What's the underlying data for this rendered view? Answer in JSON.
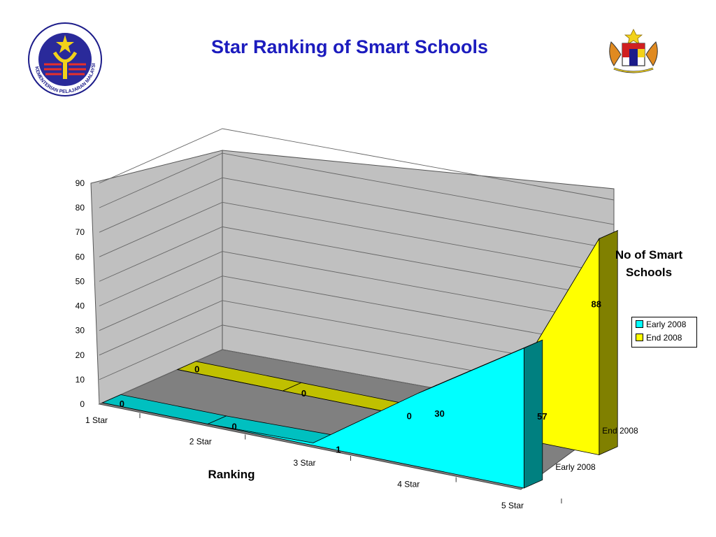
{
  "header": {
    "title": "Star Ranking of Smart Schools",
    "left_logo": {
      "icon": "ministry-of-education-crest",
      "text": "KEMENTERIAN PELAJARAN MALAYSIA"
    },
    "right_logo": {
      "icon": "malaysia-coat-of-arms"
    }
  },
  "chart_data": {
    "type": "area",
    "title": "Star Ranking of Smart Schools",
    "xlabel": "Ranking",
    "zlabel": "No of Smart Schools",
    "categories": [
      "1 Star",
      "2 Star",
      "3 Star",
      "4 Star",
      "5 Star"
    ],
    "ylim": [
      0,
      90
    ],
    "yticks": [
      0,
      10,
      20,
      30,
      40,
      50,
      60,
      70,
      80,
      90
    ],
    "series": [
      {
        "name": "Early 2008",
        "values": [
          0,
          0,
          1,
          30,
          57
        ],
        "labels": [
          "0",
          "0",
          "1",
          "30",
          "57"
        ],
        "color": "#00ffff"
      },
      {
        "name": "End 2008",
        "values": [
          0,
          0,
          0,
          8,
          88
        ],
        "labels": [
          "0",
          "0",
          "0",
          "",
          "88"
        ],
        "color": "#ffff00"
      }
    ],
    "legend_position": "right",
    "grid": true
  }
}
